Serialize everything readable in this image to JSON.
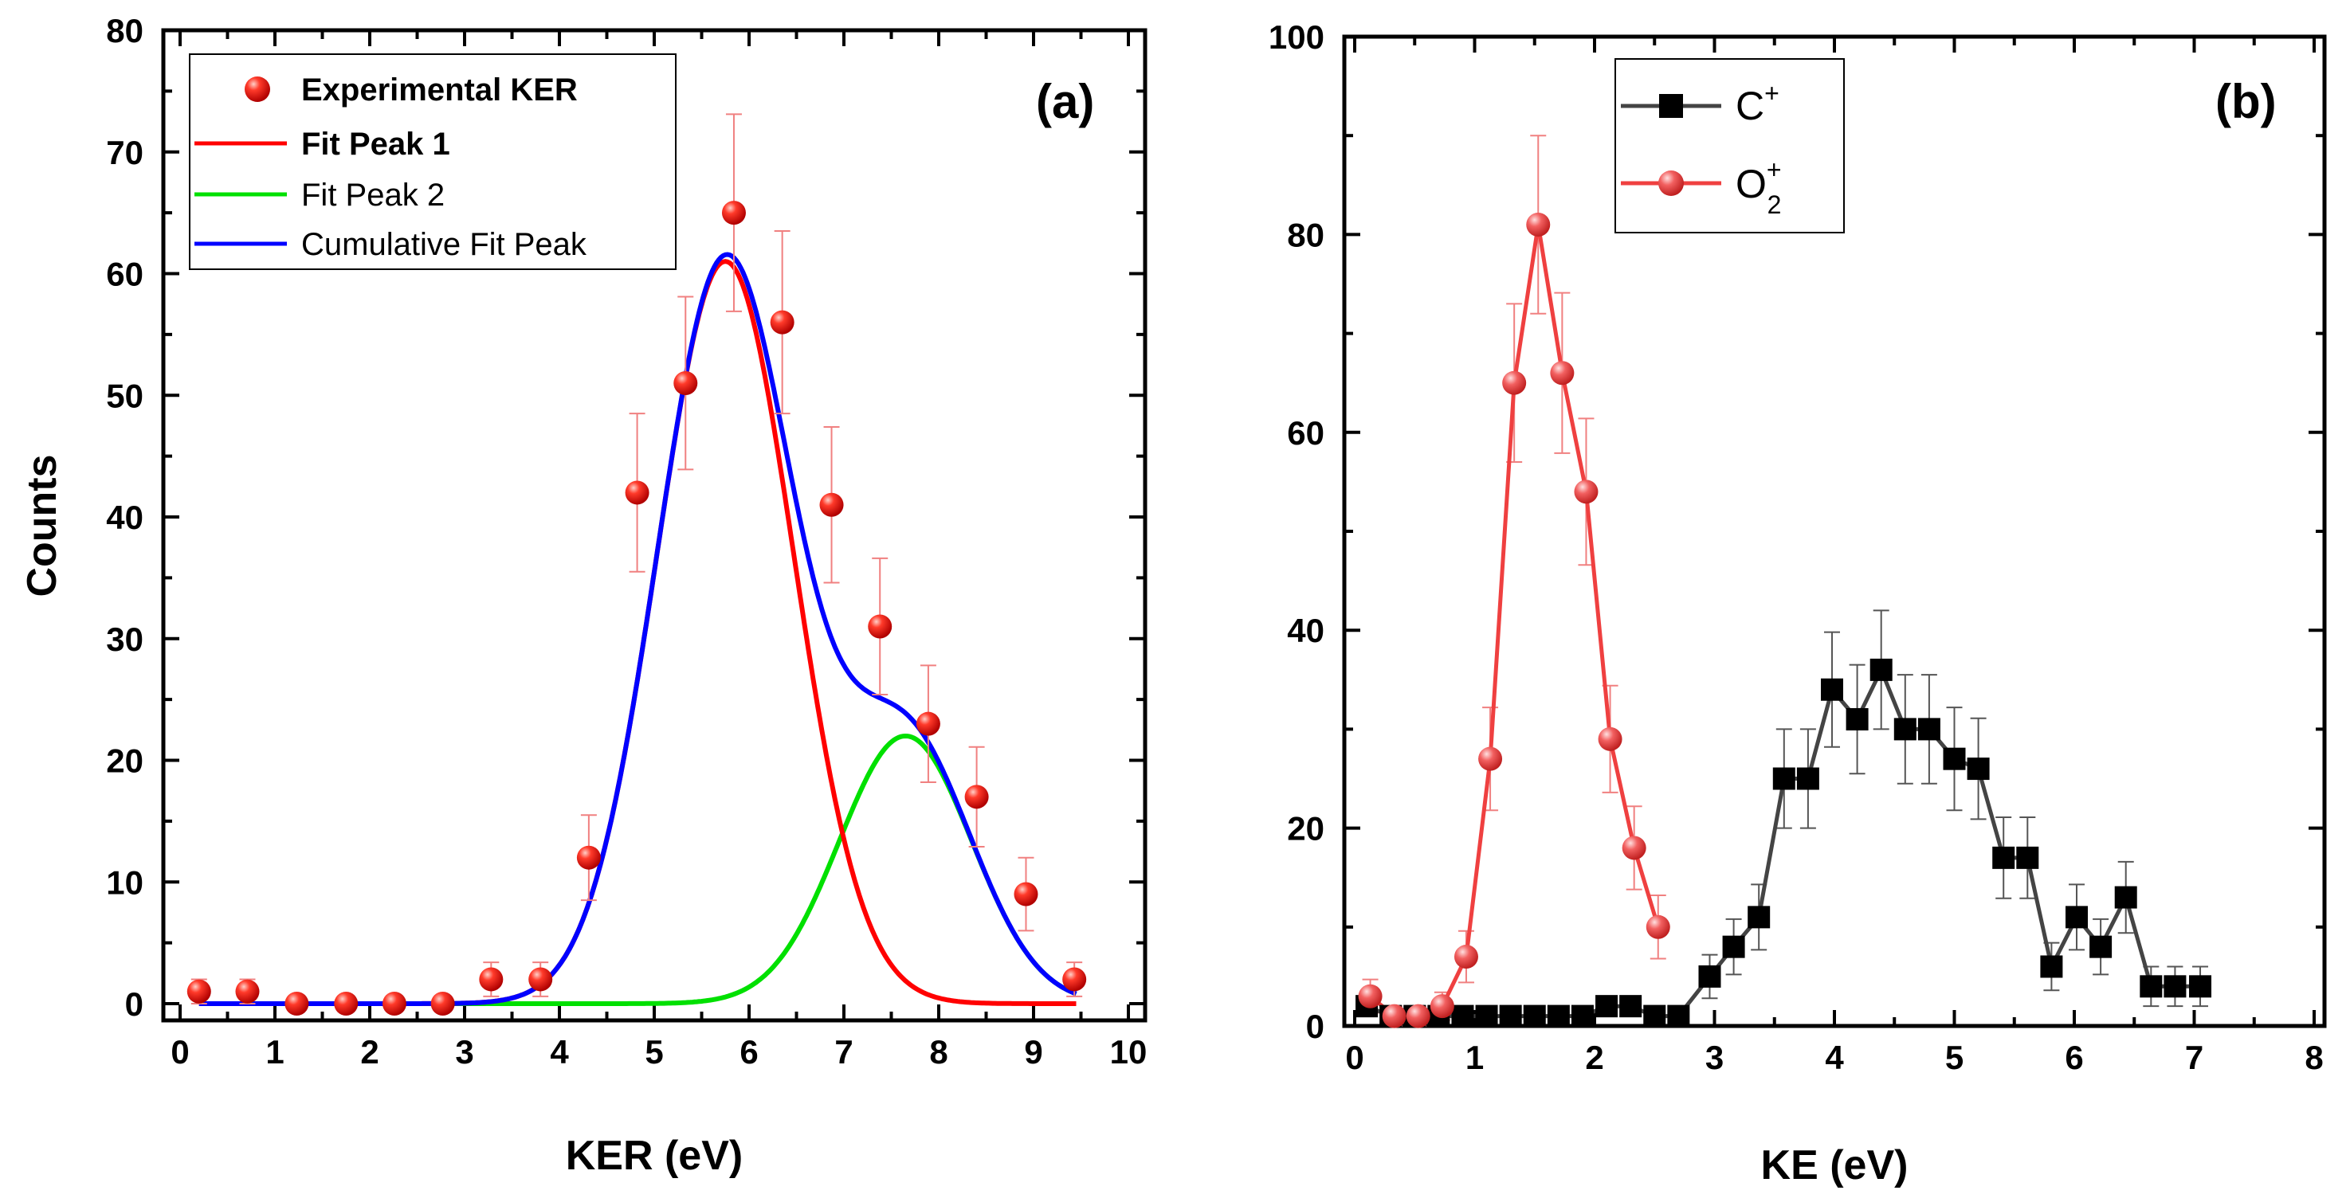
{
  "chart_data": [
    {
      "type": "scatter",
      "panel_label": "(a)",
      "xlabel": "KER (eV)",
      "ylabel": "Counts",
      "xlim": [
        0,
        10
      ],
      "ylim": [
        0,
        80
      ],
      "xticks": [
        "0",
        "1",
        "2",
        "3",
        "4",
        "5",
        "6",
        "7",
        "8",
        "9",
        "10"
      ],
      "yticks": [
        "0",
        "10",
        "20",
        "30",
        "40",
        "50",
        "60",
        "70",
        "80"
      ],
      "legend": {
        "experimental": "Experimental KER",
        "fit1": "Fit Peak 1",
        "fit2": "Fit Peak 2",
        "cumulative": "Cumulative Fit Peak"
      },
      "experimental": {
        "x": [
          0.2,
          0.71,
          1.23,
          1.75,
          2.26,
          2.77,
          3.28,
          3.8,
          4.31,
          4.82,
          5.33,
          5.84,
          6.35,
          6.87,
          7.38,
          7.89,
          8.4,
          8.92,
          9.43
        ],
        "y": [
          1,
          1,
          0,
          0,
          0,
          0,
          2,
          2,
          12,
          42,
          51,
          65,
          56,
          41,
          31,
          23,
          17,
          9,
          2
        ],
        "err": [
          1,
          1,
          0,
          0,
          0,
          0,
          1.4,
          1.4,
          3.5,
          6.5,
          7.1,
          8.1,
          7.5,
          6.4,
          5.6,
          4.8,
          4.1,
          3,
          1.4
        ]
      },
      "fit_peak_1": {
        "amplitude": 61,
        "center": 5.75,
        "sigma": 0.72
      },
      "fit_peak_2": {
        "amplitude": 22,
        "center": 7.65,
        "sigma": 0.7
      },
      "colors": {
        "experimental": "#e8150f",
        "fit1": "#ff0000",
        "fit2": "#00e000",
        "cumulative": "#0000ff",
        "errorbar": "#f08080"
      }
    },
    {
      "type": "line",
      "panel_label": "(b)",
      "xlabel": "KE (eV)",
      "ylabel": "",
      "xlim": [
        0,
        8
      ],
      "ylim": [
        0,
        100
      ],
      "xticks": [
        "0",
        "1",
        "2",
        "3",
        "4",
        "5",
        "6",
        "7",
        "8"
      ],
      "yticks": [
        "0",
        "20",
        "40",
        "60",
        "80",
        "100"
      ],
      "series": [
        {
          "name": "C",
          "superscript": "+",
          "subscript": "",
          "marker": "square",
          "color": "#000000",
          "line_color": "#444444",
          "x": [
            0.1,
            0.3,
            0.5,
            0.7,
            0.9,
            1.1,
            1.3,
            1.5,
            1.7,
            1.9,
            2.1,
            2.3,
            2.5,
            2.7,
            2.96,
            3.16,
            3.37,
            3.58,
            3.78,
            3.98,
            4.19,
            4.39,
            4.59,
            4.79,
            5.0,
            5.2,
            5.41,
            5.61,
            5.81,
            6.02,
            6.22,
            6.43,
            6.64,
            6.84,
            7.05
          ],
          "y": [
            2,
            1,
            1,
            1,
            1,
            1,
            1,
            1,
            1,
            1,
            2,
            2,
            1,
            1,
            5,
            8,
            11,
            25,
            25,
            34,
            31,
            36,
            30,
            30,
            27,
            26,
            17,
            17,
            6,
            11,
            8,
            13,
            4,
            4,
            4
          ],
          "err": [
            0,
            0,
            0,
            0,
            0,
            0,
            0,
            0,
            0,
            0,
            0,
            0,
            0,
            0,
            2.2,
            2.8,
            3.3,
            5,
            5,
            5.8,
            5.5,
            6,
            5.5,
            5.5,
            5.2,
            5.1,
            4.1,
            4.1,
            2.4,
            3.3,
            2.8,
            3.6,
            2,
            2,
            2
          ]
        },
        {
          "name": "O",
          "superscript": "+",
          "subscript": "2",
          "marker": "circle",
          "color": "#ef4040",
          "line_color": "#ef4040",
          "x": [
            0.13,
            0.33,
            0.53,
            0.73,
            0.93,
            1.13,
            1.33,
            1.53,
            1.73,
            1.93,
            2.13,
            2.33,
            2.53
          ],
          "y": [
            3,
            1,
            1,
            2,
            7,
            27,
            65,
            81,
            66,
            54,
            29,
            18,
            10
          ],
          "err": [
            1.7,
            1,
            1,
            1.4,
            2.6,
            5.2,
            8,
            9,
            8.1,
            7.4,
            5.4,
            4.2,
            3.2
          ]
        }
      ]
    }
  ]
}
